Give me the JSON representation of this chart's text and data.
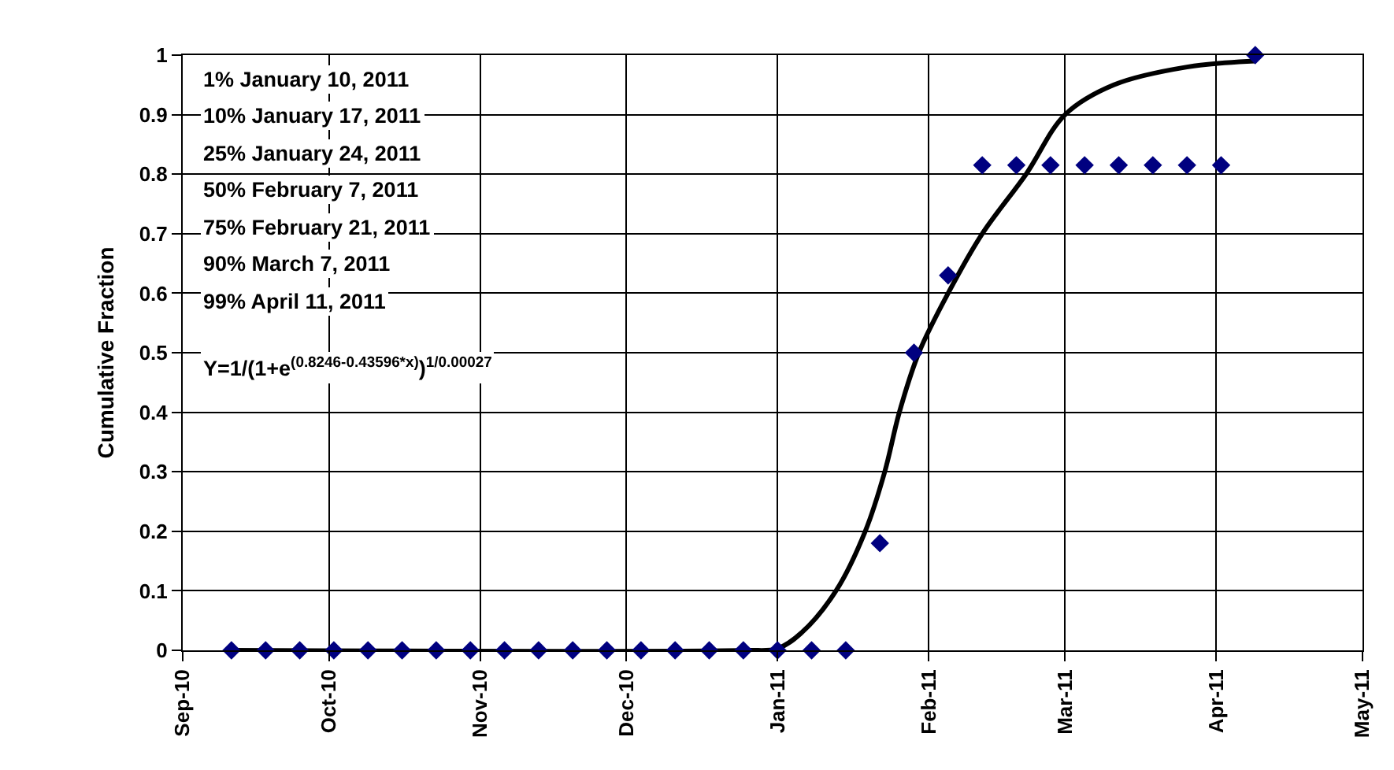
{
  "chart_data": {
    "type": "scatter",
    "ylabel": "Cumulative Fraction",
    "annotations": [
      "1% January 10, 2011",
      "10% January 17, 2011",
      "25% January 24, 2011",
      "50% February 7, 2011",
      "75% February 21, 2011",
      "90% March 7, 2011",
      "99% April 11, 2011",
      "Y=1/(1+e$^{(0.8246-0.43596*x)}$)$^{1/0.00027}$"
    ],
    "x": [
      "2010-09-11",
      "2010-09-18",
      "2010-09-25",
      "2010-10-02",
      "2010-10-09",
      "2010-10-16",
      "2010-10-23",
      "2010-10-30",
      "2010-11-06",
      "2010-11-13",
      "2010-11-20",
      "2010-11-27",
      "2010-12-04",
      "2010-12-11",
      "2010-12-18",
      "2010-12-25",
      "2011-01-01",
      "2011-01-08",
      "2011-01-15",
      "2011-01-22",
      "2011-01-29",
      "2011-02-05",
      "2011-02-12",
      "2011-02-19",
      "2011-02-26",
      "2011-03-05",
      "2011-03-12",
      "2011-03-19",
      "2011-03-26",
      "2011-04-02",
      "2011-04-09"
    ],
    "series": [
      {
        "color": "#000080",
        "values": [
          0,
          0,
          0,
          0,
          0,
          0,
          0,
          0,
          0,
          0,
          0,
          0,
          0,
          0,
          0,
          0,
          0,
          0,
          0,
          0.18,
          0.5,
          0.63,
          0.815,
          0.815,
          0.815,
          0.815,
          0.815,
          0.815,
          0.815,
          0.815,
          1
        ]
      },
      {
        "type": "line",
        "marker": "none",
        "color": "#000000",
        "x": [
          "2010-09-11",
          "2010-12-25",
          "2011-01-01",
          "2011-01-06",
          "2011-01-13",
          "2011-01-19",
          "2011-01-23",
          "2011-01-26",
          "2011-01-30",
          "2011-02-05",
          "2011-02-12",
          "2011-02-21",
          "2011-03-01",
          "2011-03-11",
          "2011-03-26",
          "2011-04-09"
        ],
        "values": [
          0,
          0,
          0.003,
          0.03,
          0.1,
          0.2,
          0.3,
          0.4,
          0.5,
          0.6,
          0.7,
          0.8,
          0.9,
          0.95,
          0.98,
          0.99
        ]
      }
    ],
    "xlim": [
      "2010-09-01",
      "2011-05-01"
    ],
    "xticks": [
      {
        "value": "2010-09-01",
        "label": "Sep-10"
      },
      {
        "value": "2010-10-01",
        "label": "Oct-10"
      },
      {
        "value": "2010-11-01",
        "label": "Nov-10"
      },
      {
        "value": "2010-12-01",
        "label": "Dec-10"
      },
      {
        "value": "2011-01-01",
        "label": "Jan-11"
      },
      {
        "value": "2011-02-01",
        "label": "Feb-11"
      },
      {
        "value": "2011-03-01",
        "label": "Mar-11"
      },
      {
        "value": "2011-04-01",
        "label": "Apr-11"
      },
      {
        "value": "2011-05-01",
        "label": "May-11"
      }
    ],
    "ylim": [
      0,
      1
    ],
    "yticks": [
      0,
      0.1,
      0.2,
      0.3,
      0.4,
      0.5,
      0.6,
      0.7,
      0.8,
      0.9,
      1
    ],
    "grid": true,
    "marker": "diamond"
  }
}
